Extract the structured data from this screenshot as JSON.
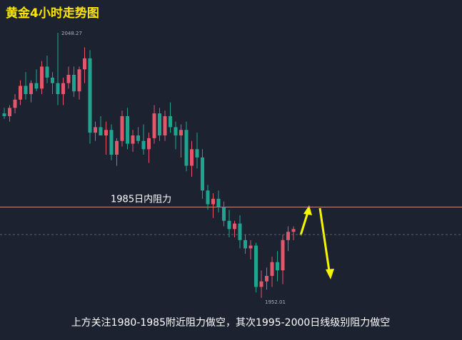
{
  "chart_data": {
    "type": "candlestick",
    "title": "黄金4小时走势图",
    "open": [
      2019,
      2018,
      2021,
      2024,
      2029,
      2026,
      2030,
      2028,
      2036,
      2032,
      2030,
      2026,
      2030,
      2033,
      2027,
      2035,
      2039,
      2012,
      2014,
      2011,
      2013,
      2004,
      2009,
      2018,
      2008,
      2011,
      2009,
      2006,
      2010,
      2019,
      2011,
      2018,
      2014,
      2011,
      2013,
      2000,
      2006,
      2003,
      1991,
      1986,
      1988,
      1985,
      1980,
      1977,
      1979,
      1973,
      1970,
      1971,
      1956,
      1958,
      1960,
      1965,
      1962,
      1973,
      1976
    ],
    "high": [
      2021,
      2022,
      2026,
      2031,
      2034,
      2031,
      2035,
      2038,
      2040,
      2034,
      2048.27,
      2032,
      2036,
      2036,
      2036,
      2043,
      2042,
      2016,
      2018,
      2016,
      2015,
      2010,
      2020,
      2021,
      2013,
      2014,
      2015,
      2012,
      2022,
      2021,
      2020,
      2023,
      2016,
      2015,
      2016,
      2009,
      2012,
      2006,
      1993,
      1990,
      1991,
      1987,
      1984,
      1980,
      1982,
      1975,
      1973,
      1972,
      1962,
      1963,
      1967,
      1969,
      1975,
      1978,
      1978
    ],
    "low": [
      2017,
      2016,
      2019,
      2022,
      2024,
      2023,
      2027,
      2026,
      2030,
      2026,
      2022,
      2022,
      2028,
      2025,
      2024,
      2030,
      2008,
      2009,
      2011,
      2004,
      2002,
      2000,
      2007,
      2006,
      2005,
      2008,
      2004,
      2001,
      2008,
      2009,
      2009,
      2012,
      2006,
      2003,
      1998,
      1996,
      1999,
      1988,
      1984,
      1981,
      1983,
      1978,
      1974,
      1974,
      1970,
      1968,
      1966,
      1954,
      1952.01,
      1955,
      1956,
      1958,
      1957,
      1969,
      1973
    ],
    "close": [
      2018,
      2021,
      2024,
      2029,
      2026,
      2030,
      2028,
      2036,
      2032,
      2030,
      2026,
      2030,
      2033,
      2027,
      2035,
      2039,
      2012,
      2014,
      2011,
      2013,
      2004,
      2009,
      2018,
      2008,
      2011,
      2009,
      2006,
      2010,
      2019,
      2011,
      2018,
      2014,
      2011,
      2013,
      2000,
      2006,
      2003,
      1991,
      1986,
      1988,
      1985,
      1980,
      1977,
      1979,
      1973,
      1970,
      1971,
      1956,
      1958,
      1960,
      1965,
      1962,
      1973,
      1976,
      1977
    ],
    "up_color": "#e2576a",
    "down_color": "#1fa58f",
    "ylim": [
      1945,
      2055
    ],
    "resistance": {
      "value": 1985,
      "label": "1985日内阻力",
      "color": "#c98a8a"
    },
    "price_line": 1975,
    "note": "上方关注1980-1985附近阻力做空，其次1995-2000日线级别阻力做空"
  }
}
